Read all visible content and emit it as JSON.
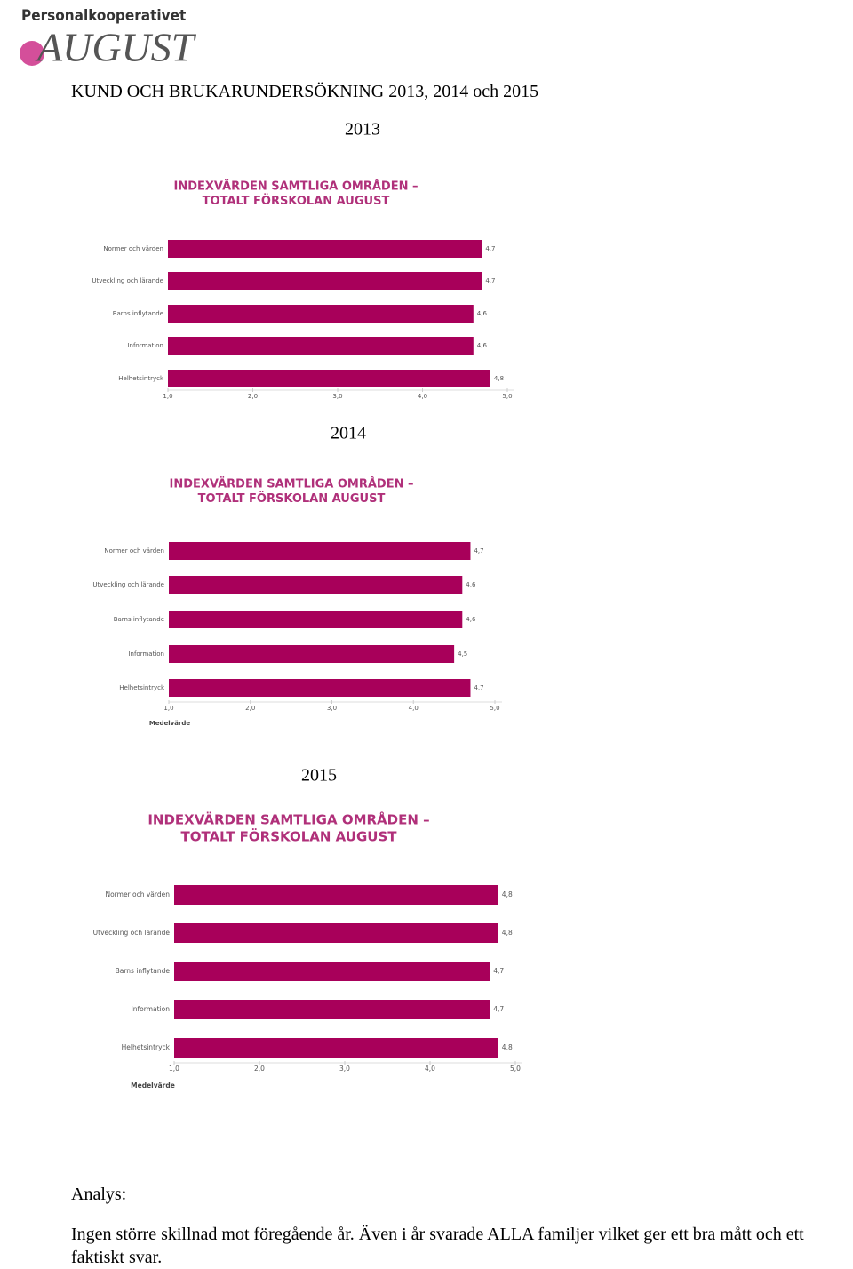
{
  "header": {
    "logo_top": "Personalkooperativet",
    "logo_name": "AUGUST",
    "title": "KUND OCH BRUKARUNDERSÖKNING 2013, 2014 och 2015"
  },
  "chart_data": [
    {
      "type": "bar",
      "caption": "2013",
      "title": "INDEXVÄRDEN  SAMTLIGA  OMRÅDEN –",
      "subtitle": "TOTALT FÖRSKOLAN AUGUST",
      "categories": [
        "Normer och värden",
        "Utveckling och lärande",
        "Barns inflytande",
        "Information",
        "Helhetsintryck"
      ],
      "values": [
        4.7,
        4.7,
        4.6,
        4.6,
        4.8
      ],
      "value_labels": [
        "4,7",
        "4,7",
        "4,6",
        "4,6",
        "4,8"
      ],
      "color": "#a8005a",
      "xlim": [
        1,
        5
      ],
      "xticks": [
        {
          "value": 1,
          "label": "1,0"
        },
        {
          "value": 2,
          "label": "2,0"
        },
        {
          "value": 3,
          "label": "3,0"
        },
        {
          "value": 4,
          "label": "4,0"
        },
        {
          "value": 5,
          "label": "5,0"
        }
      ]
    },
    {
      "type": "bar",
      "caption": "2014",
      "title": "INDEXVÄRDEN  SAMTLIGA  OMRÅDEN –",
      "subtitle": "TOTALT FÖRSKOLAN AUGUST",
      "categories": [
        "Normer och värden",
        "Utveckling och lärande",
        "Barns inflytande",
        "Information",
        "Helhetsintryck"
      ],
      "values": [
        4.7,
        4.6,
        4.6,
        4.5,
        4.7
      ],
      "value_labels": [
        "4,7",
        "4,6",
        "4,6",
        "4,5",
        "4,7"
      ],
      "color": "#a8005a",
      "xlim": [
        1,
        5
      ],
      "xticks": [
        {
          "value": 1,
          "label": "1,0"
        },
        {
          "value": 2,
          "label": "2,0"
        },
        {
          "value": 3,
          "label": "3,0"
        },
        {
          "value": 4,
          "label": "4,0"
        },
        {
          "value": 5,
          "label": "5,0"
        }
      ],
      "xlabel": "Medelvärde"
    },
    {
      "type": "bar",
      "caption": "2015",
      "title": "INDEXVÄRDEN  SAMTLIGA  OMRÅDEN –",
      "subtitle": "TOTALT FÖRSKOLAN AUGUST",
      "categories": [
        "Normer och värden",
        "Utveckling och lärande",
        "Barns inflytande",
        "Information",
        "Helhetsintryck"
      ],
      "values": [
        4.8,
        4.8,
        4.7,
        4.7,
        4.8
      ],
      "value_labels": [
        "4,8",
        "4,8",
        "4,7",
        "4,7",
        "4,8"
      ],
      "color": "#a8005a",
      "xlim": [
        1,
        5
      ],
      "xticks": [
        {
          "value": 1,
          "label": "1,0"
        },
        {
          "value": 2,
          "label": "2,0"
        },
        {
          "value": 3,
          "label": "3,0"
        },
        {
          "value": 4,
          "label": "4,0"
        },
        {
          "value": 5,
          "label": "5,0"
        }
      ],
      "xlabel": "Medelvärde"
    }
  ],
  "analysis": {
    "heading": "Analys:",
    "text": "Ingen större skillnad mot föregående år. Även i år svarade ALLA familjer vilket ger ett bra mått och ett faktiskt svar."
  }
}
